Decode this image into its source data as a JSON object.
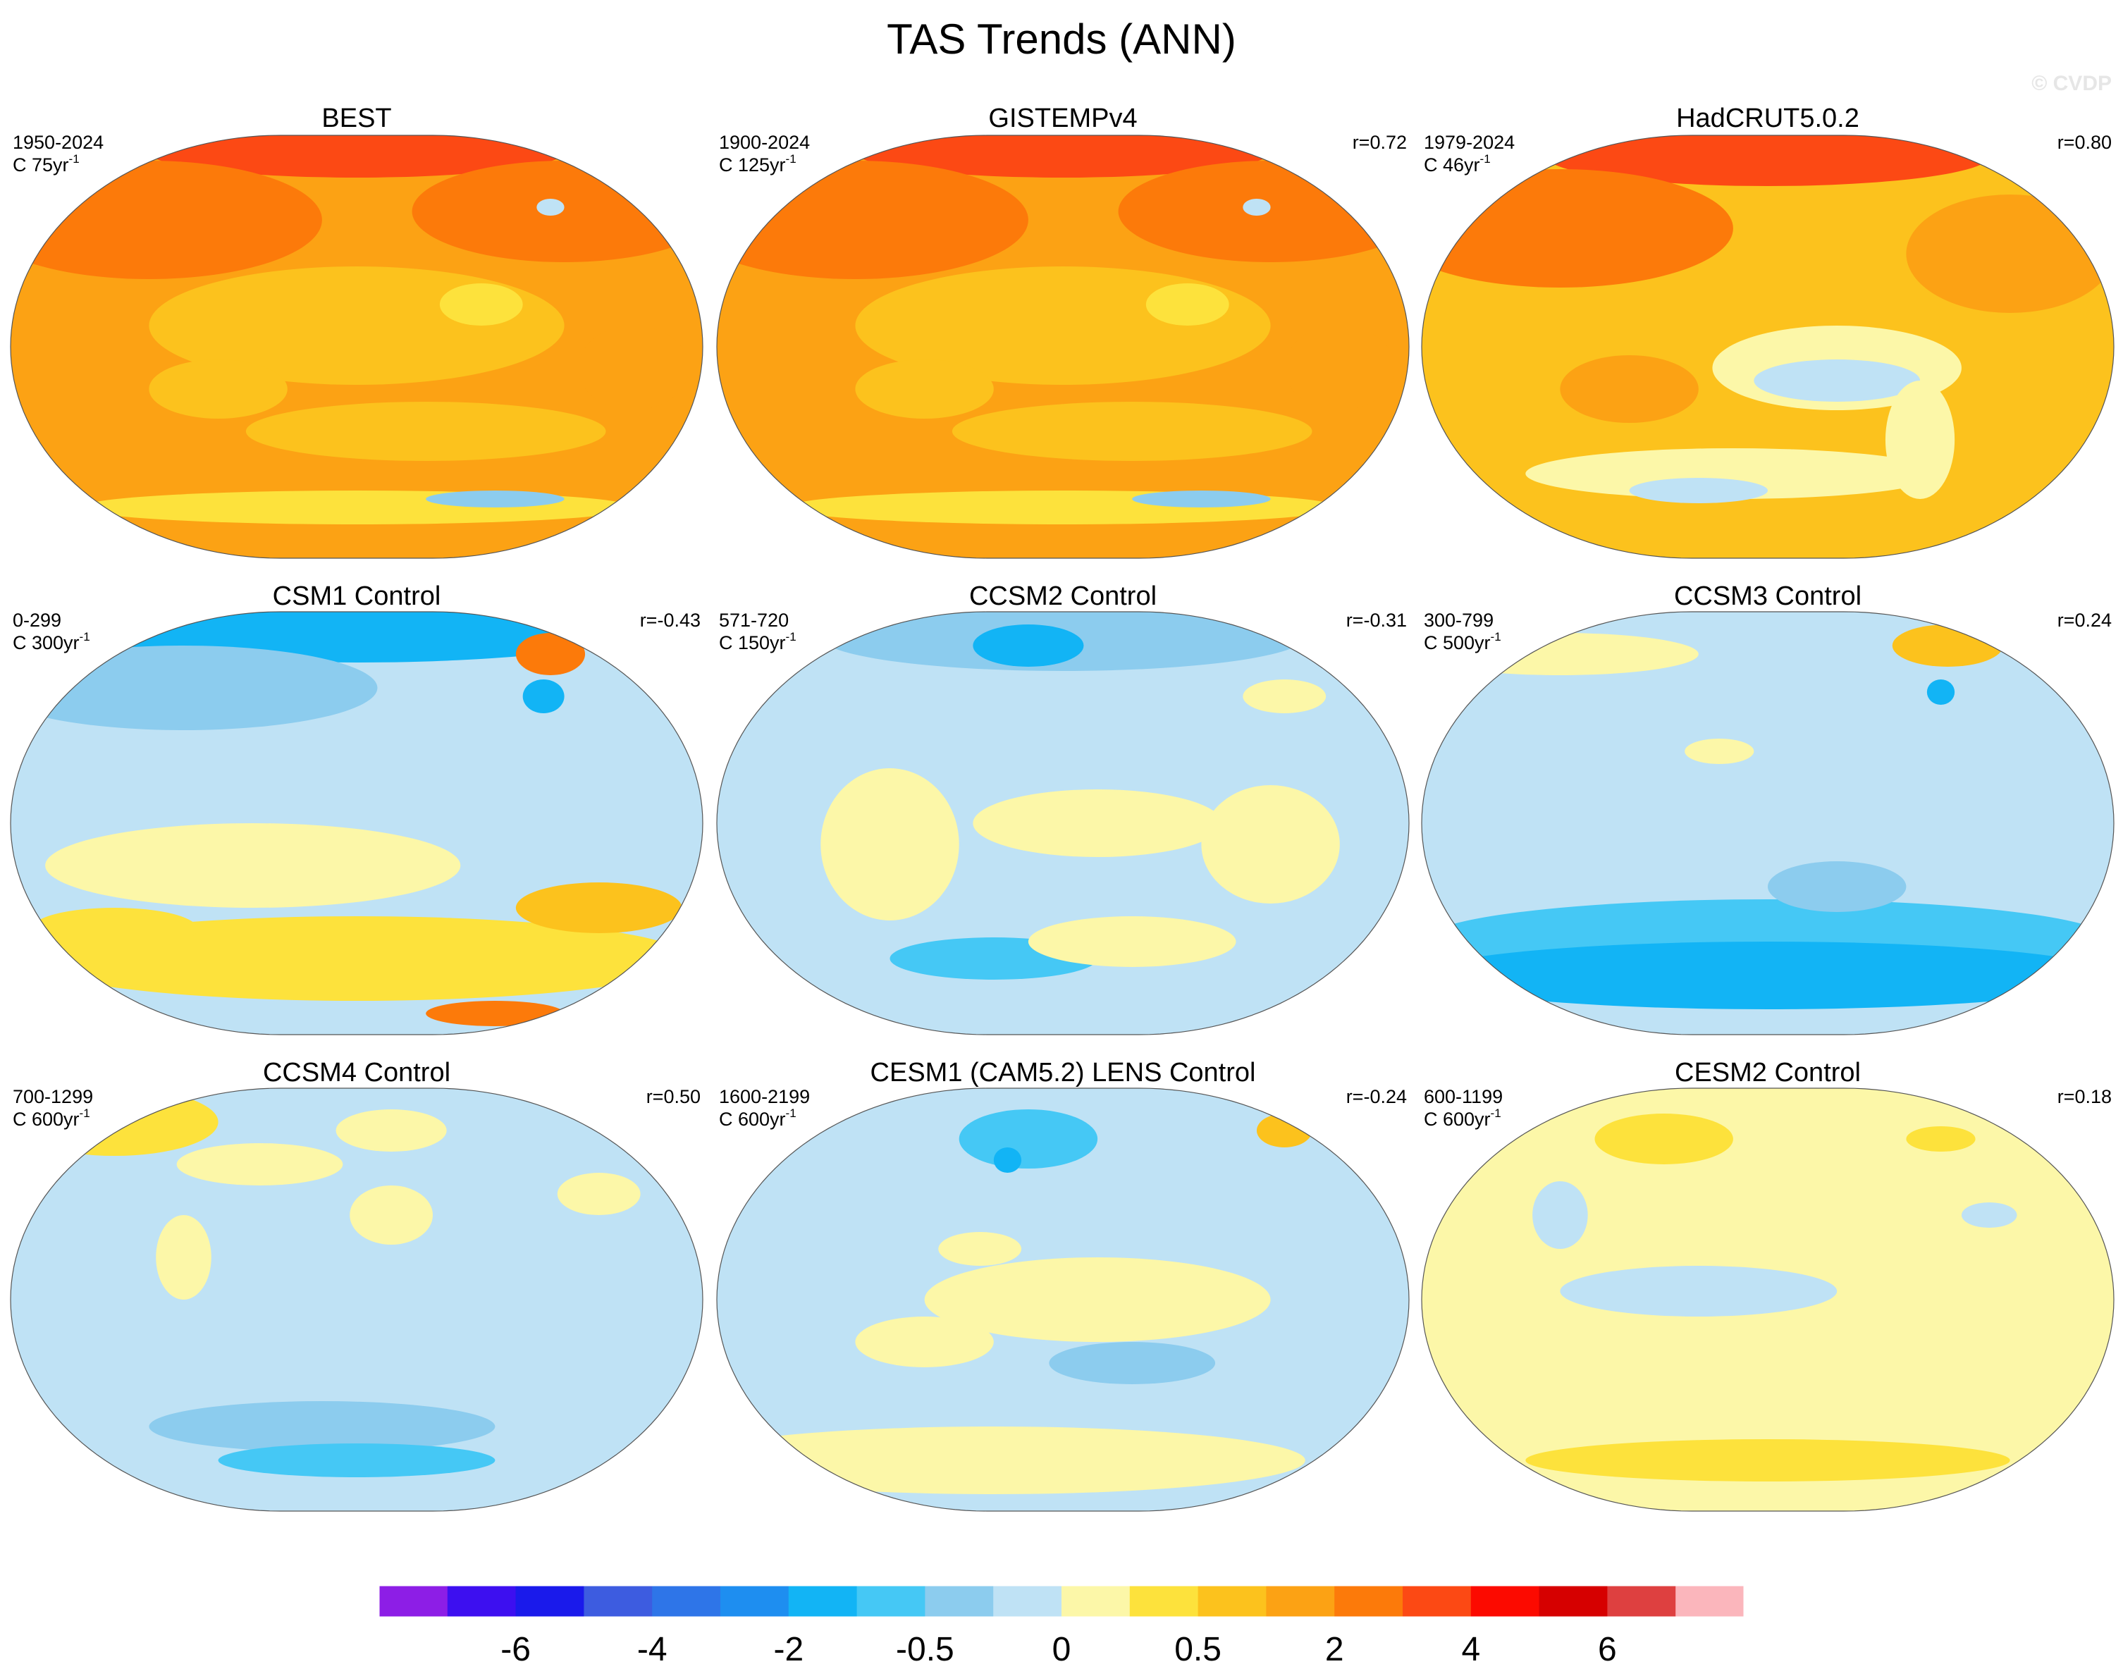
{
  "figure": {
    "title": "TAS Trends (ANN)",
    "watermark": "© CVDP"
  },
  "palette": {
    "ocean_ice_none": "#ffffff",
    "land_outline": "#707070",
    "cb_purple": "#8a2be2",
    "strong_red": "#ff2a00"
  },
  "panels": [
    {
      "title": "BEST",
      "years": "1950-2024",
      "length": "C 75yr",
      "r": "",
      "field": "warm"
    },
    {
      "title": "GISTEMPv4",
      "years": "1900-2024",
      "length": "C 125yr",
      "r": "r=0.72",
      "field": "warm"
    },
    {
      "title": "HadCRUT5.0.2",
      "years": "1979-2024",
      "length": "C 46yr",
      "r": "r=0.80",
      "field": "warm_mixed"
    },
    {
      "title": "CSM1 Control",
      "years": "0-299",
      "length": "C 300yr",
      "r": "r=-0.43",
      "field": "cool_south_warm"
    },
    {
      "title": "CCSM2 Control",
      "years": "571-720",
      "length": "C 150yr",
      "r": "r=-0.31",
      "field": "mixed"
    },
    {
      "title": "CCSM3 Control",
      "years": "300-799",
      "length": "C 500yr",
      "r": "r=0.24",
      "field": "cool"
    },
    {
      "title": "CCSM4 Control",
      "years": "700-1299",
      "length": "C 600yr",
      "r": "r=0.50",
      "field": "pale_cool"
    },
    {
      "title": "CESM1 (CAM5.2) LENS Control",
      "years": "1600-2199",
      "length": "C 600yr",
      "r": "r=-0.24",
      "field": "mixed_cool"
    },
    {
      "title": "CESM2 Control",
      "years": "600-1199",
      "length": "C 600yr",
      "r": "r=0.18",
      "field": "pale_warm"
    }
  ],
  "superscript": "-1",
  "colorbar": {
    "colors": [
      "#8d1ee6",
      "#3d0ff0",
      "#1a1aeb",
      "#3d5ce0",
      "#2e75e8",
      "#1e8ef0",
      "#12b4f5",
      "#45c8f5",
      "#8cccee",
      "#bfe2f5",
      "#fcf7a8",
      "#fde23c",
      "#fcc21d",
      "#fca214",
      "#fc7a0a",
      "#fc4914",
      "#fc0a00",
      "#d60000",
      "#de4040",
      "#fbb6bc"
    ],
    "tick_labels": [
      "-6",
      "-4",
      "-2",
      "-0.5",
      "0",
      "0.5",
      "2",
      "4",
      "6"
    ]
  }
}
